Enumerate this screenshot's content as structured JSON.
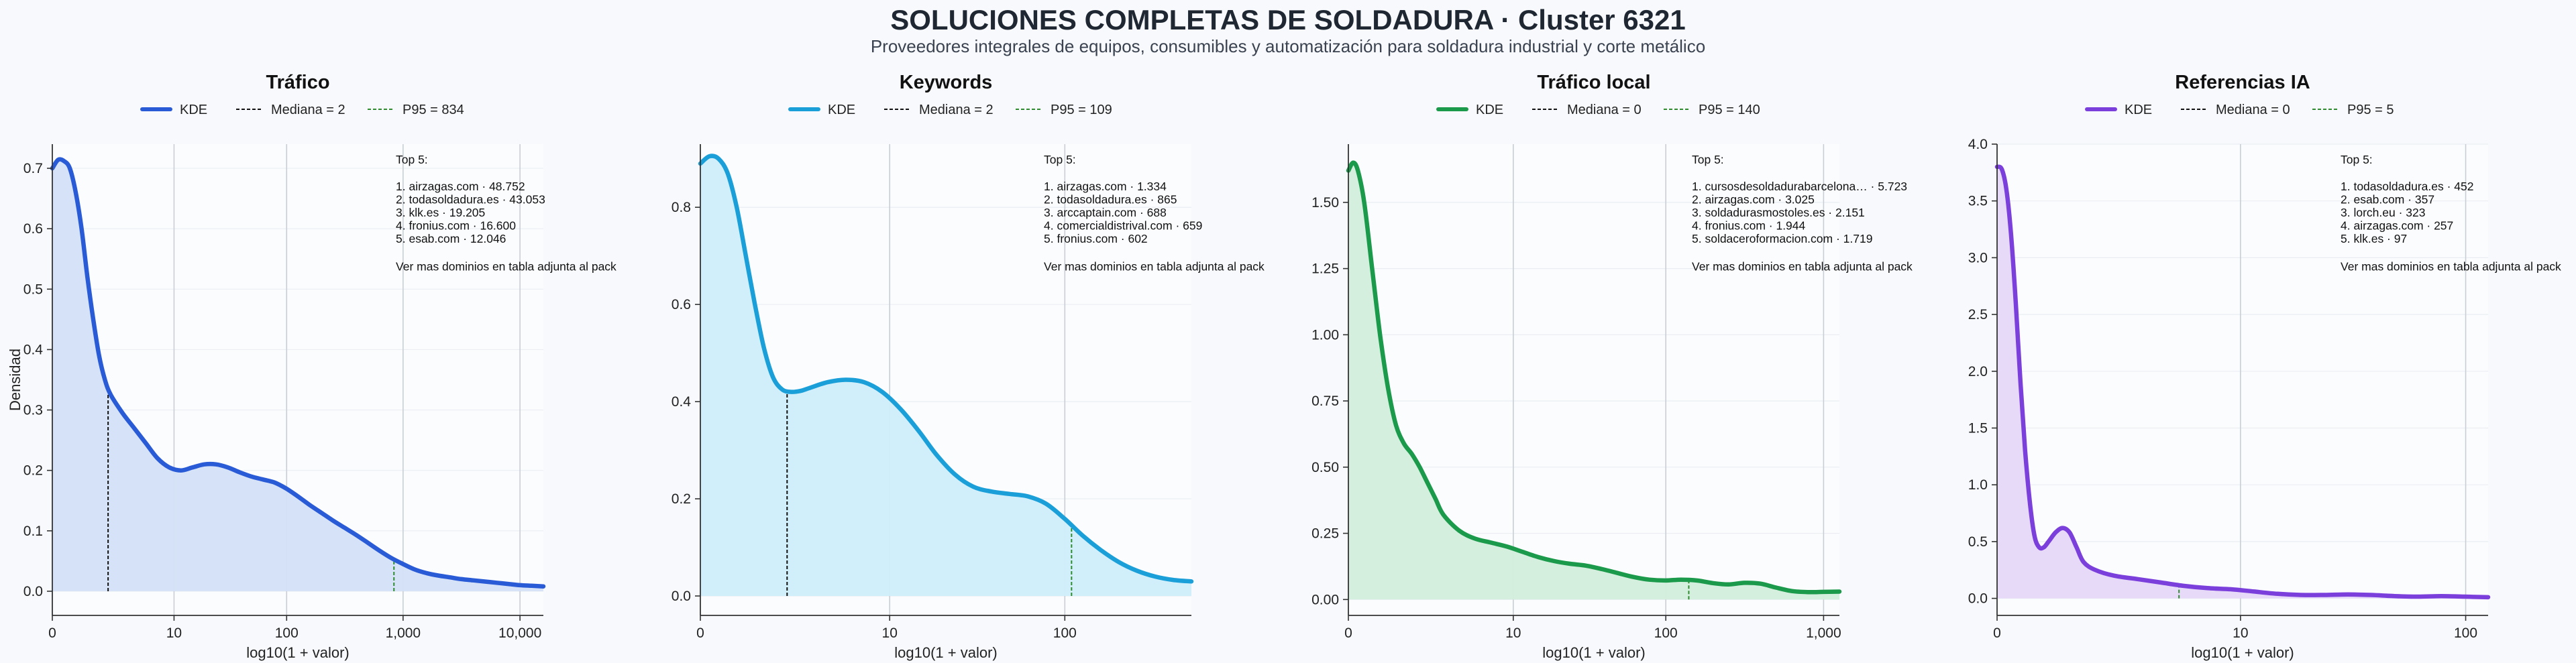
{
  "title": "SOLUCIONES COMPLETAS DE SOLDADURA · Cluster 6321",
  "subtitle": "Proveedores integrales de equipos, consumibles y automatización para soldadura industrial y corte metálico",
  "ylabel_shared": "Densidad",
  "chart_data": [
    {
      "type": "area",
      "title": "Tráfico",
      "color": "#2a5bd7",
      "fill": "#d4e0f7",
      "legend": {
        "kde": "KDE",
        "median": "Mediana = 2",
        "p95": "P95 = 834"
      },
      "xlabel": "log10(1 + valor)",
      "ylabel": "Densidad",
      "xscale": "log10(1+x)",
      "xlim": [
        0,
        4.2
      ],
      "ylim": [
        -0.04,
        0.74
      ],
      "xticks": [
        {
          "v": 0,
          "label": "0"
        },
        {
          "v": 1.041,
          "label": "10"
        },
        {
          "v": 2.004,
          "label": "100"
        },
        {
          "v": 3.0,
          "label": "1,000"
        },
        {
          "v": 4.0,
          "label": "10,000"
        }
      ],
      "yticks": [
        {
          "v": 0,
          "label": "0.0"
        },
        {
          "v": 0.1,
          "label": "0.1"
        },
        {
          "v": 0.2,
          "label": "0.2"
        },
        {
          "v": 0.3,
          "label": "0.3"
        },
        {
          "v": 0.4,
          "label": "0.4"
        },
        {
          "v": 0.5,
          "label": "0.5"
        },
        {
          "v": 0.6,
          "label": "0.6"
        },
        {
          "v": 0.7,
          "label": "0.7"
        }
      ],
      "median_x": 0.477,
      "p95_x": 2.922,
      "points": [
        [
          0,
          0.7
        ],
        [
          0.05,
          0.714
        ],
        [
          0.1,
          0.712
        ],
        [
          0.15,
          0.7
        ],
        [
          0.2,
          0.66
        ],
        [
          0.25,
          0.6
        ],
        [
          0.3,
          0.52
        ],
        [
          0.35,
          0.45
        ],
        [
          0.4,
          0.39
        ],
        [
          0.45,
          0.35
        ],
        [
          0.5,
          0.325
        ],
        [
          0.6,
          0.295
        ],
        [
          0.7,
          0.27
        ],
        [
          0.8,
          0.245
        ],
        [
          0.9,
          0.22
        ],
        [
          1.0,
          0.205
        ],
        [
          1.1,
          0.2
        ],
        [
          1.2,
          0.205
        ],
        [
          1.3,
          0.21
        ],
        [
          1.4,
          0.21
        ],
        [
          1.5,
          0.205
        ],
        [
          1.6,
          0.197
        ],
        [
          1.7,
          0.19
        ],
        [
          1.8,
          0.185
        ],
        [
          1.9,
          0.18
        ],
        [
          2.0,
          0.17
        ],
        [
          2.1,
          0.157
        ],
        [
          2.2,
          0.143
        ],
        [
          2.3,
          0.13
        ],
        [
          2.4,
          0.117
        ],
        [
          2.5,
          0.105
        ],
        [
          2.6,
          0.093
        ],
        [
          2.7,
          0.08
        ],
        [
          2.8,
          0.067
        ],
        [
          2.9,
          0.055
        ],
        [
          3.0,
          0.045
        ],
        [
          3.1,
          0.036
        ],
        [
          3.2,
          0.03
        ],
        [
          3.3,
          0.026
        ],
        [
          3.4,
          0.023
        ],
        [
          3.5,
          0.02
        ],
        [
          3.6,
          0.018
        ],
        [
          3.7,
          0.016
        ],
        [
          3.8,
          0.014
        ],
        [
          3.9,
          0.012
        ],
        [
          4.0,
          0.01
        ],
        [
          4.1,
          0.009
        ],
        [
          4.2,
          0.008
        ]
      ],
      "top5": {
        "heading": "Top 5:",
        "items": [
          "1. airzagas.com · 48.752",
          "2. todasoldadura.es · 43.053",
          "3. klk.es · 19.205",
          "4. fronius.com · 16.600",
          "5. esab.com · 12.046"
        ],
        "footer": "Ver mas dominios en tabla adjunta al pack"
      }
    },
    {
      "type": "area",
      "title": "Keywords",
      "color": "#1a9fd9",
      "fill": "#cfeefb",
      "legend": {
        "kde": "KDE",
        "median": "Mediana = 2",
        "p95": "P95 = 109"
      },
      "xlabel": "log10(1 + valor)",
      "ylabel": "",
      "xscale": "log10(1+x)",
      "xlim": [
        0,
        2.7
      ],
      "ylim": [
        -0.04,
        0.93
      ],
      "xticks": [
        {
          "v": 0,
          "label": "0"
        },
        {
          "v": 1.041,
          "label": "10"
        },
        {
          "v": 2.004,
          "label": "100"
        }
      ],
      "yticks": [
        {
          "v": 0,
          "label": "0.0"
        },
        {
          "v": 0.2,
          "label": "0.2"
        },
        {
          "v": 0.4,
          "label": "0.4"
        },
        {
          "v": 0.6,
          "label": "0.6"
        },
        {
          "v": 0.8,
          "label": "0.8"
        }
      ],
      "median_x": 0.477,
      "p95_x": 2.041,
      "points": [
        [
          0,
          0.89
        ],
        [
          0.05,
          0.905
        ],
        [
          0.1,
          0.9
        ],
        [
          0.15,
          0.87
        ],
        [
          0.2,
          0.8
        ],
        [
          0.25,
          0.7
        ],
        [
          0.3,
          0.6
        ],
        [
          0.35,
          0.51
        ],
        [
          0.4,
          0.45
        ],
        [
          0.45,
          0.425
        ],
        [
          0.5,
          0.42
        ],
        [
          0.55,
          0.422
        ],
        [
          0.6,
          0.428
        ],
        [
          0.7,
          0.44
        ],
        [
          0.8,
          0.445
        ],
        [
          0.9,
          0.44
        ],
        [
          1.0,
          0.42
        ],
        [
          1.1,
          0.385
        ],
        [
          1.2,
          0.34
        ],
        [
          1.3,
          0.29
        ],
        [
          1.4,
          0.25
        ],
        [
          1.5,
          0.225
        ],
        [
          1.6,
          0.215
        ],
        [
          1.7,
          0.21
        ],
        [
          1.8,
          0.205
        ],
        [
          1.9,
          0.19
        ],
        [
          2.0,
          0.16
        ],
        [
          2.1,
          0.125
        ],
        [
          2.2,
          0.095
        ],
        [
          2.3,
          0.07
        ],
        [
          2.4,
          0.052
        ],
        [
          2.5,
          0.04
        ],
        [
          2.6,
          0.033
        ],
        [
          2.7,
          0.03
        ]
      ],
      "top5": {
        "heading": "Top 5:",
        "items": [
          "1. airzagas.com · 1.334",
          "2. todasoldadura.es · 865",
          "3. arccaptain.com · 688",
          "4. comercialdistrival.com · 659",
          "5. fronius.com · 602"
        ],
        "footer": "Ver mas dominios en tabla adjunta al pack"
      }
    },
    {
      "type": "area",
      "title": "Tráfico local",
      "color": "#1b9a4b",
      "fill": "#d3eedc",
      "legend": {
        "kde": "KDE",
        "median": "Mediana = 0",
        "p95": "P95 = 140"
      },
      "xlabel": "log10(1 + valor)",
      "ylabel": "",
      "xscale": "log10(1+x)",
      "xlim": [
        0,
        3.1
      ],
      "ylim": [
        -0.06,
        1.72
      ],
      "xticks": [
        {
          "v": 0,
          "label": "0"
        },
        {
          "v": 1.041,
          "label": "10"
        },
        {
          "v": 2.004,
          "label": "100"
        },
        {
          "v": 3.0,
          "label": "1,000"
        }
      ],
      "yticks": [
        {
          "v": 0,
          "label": "0.00"
        },
        {
          "v": 0.25,
          "label": "0.25"
        },
        {
          "v": 0.5,
          "label": "0.50"
        },
        {
          "v": 0.75,
          "label": "0.75"
        },
        {
          "v": 1.0,
          "label": "1.00"
        },
        {
          "v": 1.25,
          "label": "1.25"
        },
        {
          "v": 1.5,
          "label": "1.50"
        }
      ],
      "median_x": 0.0,
      "p95_x": 2.149,
      "points": [
        [
          0,
          1.62
        ],
        [
          0.03,
          1.65
        ],
        [
          0.06,
          1.62
        ],
        [
          0.1,
          1.5
        ],
        [
          0.15,
          1.25
        ],
        [
          0.2,
          1.0
        ],
        [
          0.25,
          0.8
        ],
        [
          0.3,
          0.66
        ],
        [
          0.35,
          0.59
        ],
        [
          0.4,
          0.55
        ],
        [
          0.45,
          0.5
        ],
        [
          0.5,
          0.44
        ],
        [
          0.55,
          0.38
        ],
        [
          0.6,
          0.32
        ],
        [
          0.7,
          0.26
        ],
        [
          0.8,
          0.23
        ],
        [
          0.9,
          0.215
        ],
        [
          1.0,
          0.2
        ],
        [
          1.1,
          0.18
        ],
        [
          1.2,
          0.16
        ],
        [
          1.3,
          0.145
        ],
        [
          1.4,
          0.135
        ],
        [
          1.5,
          0.128
        ],
        [
          1.6,
          0.115
        ],
        [
          1.7,
          0.1
        ],
        [
          1.8,
          0.085
        ],
        [
          1.9,
          0.075
        ],
        [
          2.0,
          0.072
        ],
        [
          2.1,
          0.075
        ],
        [
          2.2,
          0.072
        ],
        [
          2.3,
          0.062
        ],
        [
          2.4,
          0.057
        ],
        [
          2.5,
          0.063
        ],
        [
          2.6,
          0.06
        ],
        [
          2.7,
          0.045
        ],
        [
          2.8,
          0.032
        ],
        [
          2.9,
          0.028
        ],
        [
          3.0,
          0.029
        ],
        [
          3.1,
          0.03
        ]
      ],
      "top5": {
        "heading": "Top 5:",
        "items": [
          "1. cursosdesoldadurabarcelona… · 5.723",
          "2. airzagas.com · 3.025",
          "3. soldadurasmostoles.es · 2.151",
          "4. fronius.com · 1.944",
          "5. soldaceroformacion.com · 1.719"
        ],
        "footer": "Ver mas dominios en tabla adjunta al pack"
      }
    },
    {
      "type": "area",
      "title": "Referencias IA",
      "color": "#7b3fdc",
      "fill": "#e6d8f8",
      "legend": {
        "kde": "KDE",
        "median": "Mediana = 0",
        "p95": "P95 = 5"
      },
      "xlabel": "log10(1 + valor)",
      "ylabel": "",
      "xscale": "log10(1+x)",
      "xlim": [
        0,
        2.1
      ],
      "ylim": [
        -0.15,
        4.0
      ],
      "xticks": [
        {
          "v": 0,
          "label": "0"
        },
        {
          "v": 1.041,
          "label": "10"
        },
        {
          "v": 2.004,
          "label": "100"
        }
      ],
      "yticks": [
        {
          "v": 0,
          "label": "0.0"
        },
        {
          "v": 0.5,
          "label": "0.5"
        },
        {
          "v": 1.0,
          "label": "1.0"
        },
        {
          "v": 1.5,
          "label": "1.5"
        },
        {
          "v": 2.0,
          "label": "2.0"
        },
        {
          "v": 2.5,
          "label": "2.5"
        },
        {
          "v": 3.0,
          "label": "3.0"
        },
        {
          "v": 3.5,
          "label": "3.5"
        },
        {
          "v": 4.0,
          "label": "4.0"
        }
      ],
      "median_x": 0.0,
      "p95_x": 0.778,
      "points": [
        [
          0,
          3.8
        ],
        [
          0.02,
          3.78
        ],
        [
          0.04,
          3.6
        ],
        [
          0.06,
          3.2
        ],
        [
          0.08,
          2.6
        ],
        [
          0.1,
          1.9
        ],
        [
          0.12,
          1.3
        ],
        [
          0.14,
          0.85
        ],
        [
          0.16,
          0.55
        ],
        [
          0.18,
          0.45
        ],
        [
          0.2,
          0.45
        ],
        [
          0.22,
          0.5
        ],
        [
          0.25,
          0.58
        ],
        [
          0.28,
          0.62
        ],
        [
          0.31,
          0.58
        ],
        [
          0.34,
          0.45
        ],
        [
          0.37,
          0.32
        ],
        [
          0.42,
          0.25
        ],
        [
          0.5,
          0.2
        ],
        [
          0.6,
          0.17
        ],
        [
          0.7,
          0.14
        ],
        [
          0.8,
          0.11
        ],
        [
          0.9,
          0.09
        ],
        [
          1.0,
          0.08
        ],
        [
          1.1,
          0.06
        ],
        [
          1.2,
          0.04
        ],
        [
          1.3,
          0.03
        ],
        [
          1.4,
          0.03
        ],
        [
          1.5,
          0.035
        ],
        [
          1.6,
          0.03
        ],
        [
          1.7,
          0.02
        ],
        [
          1.8,
          0.015
        ],
        [
          1.9,
          0.02
        ],
        [
          2.0,
          0.015
        ],
        [
          2.1,
          0.01
        ]
      ],
      "top5": {
        "heading": "Top 5:",
        "items": [
          "1. todasoldadura.es · 452",
          "2. esab.com · 357",
          "3. lorch.eu · 323",
          "4. airzagas.com · 257",
          "5. klk.es · 97"
        ],
        "footer": "Ver mas dominios en tabla adjunta al pack"
      }
    }
  ]
}
